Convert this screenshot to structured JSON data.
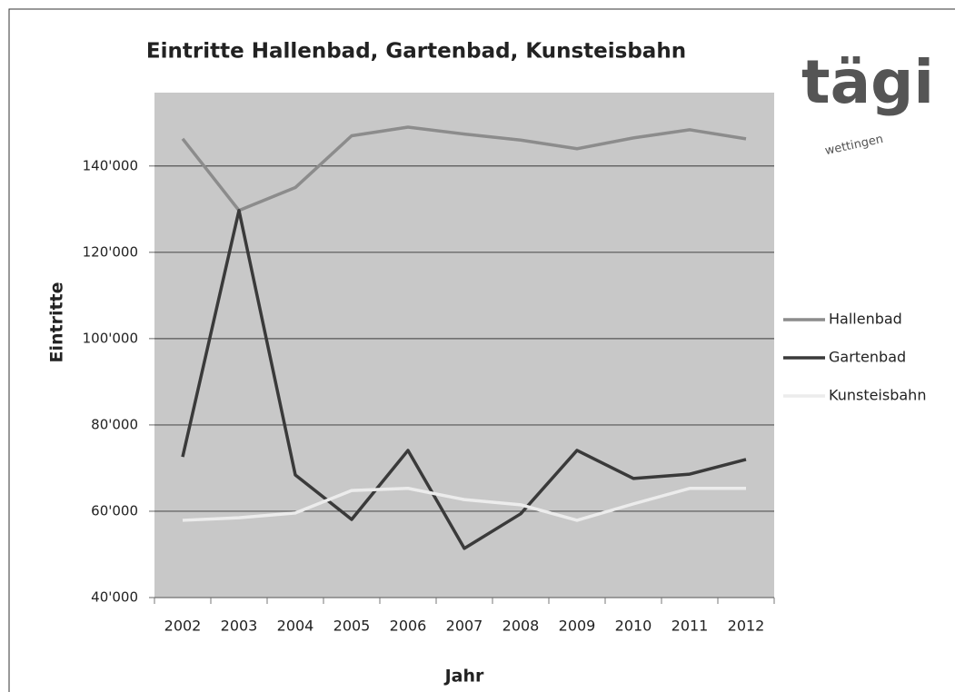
{
  "chart_data": {
    "type": "line",
    "title": "Eintritte Hallenbad, Gartenbad, Kunsteisbahn",
    "x_label": "Jahr",
    "y_label": "Eintritte",
    "categories": [
      "2002",
      "2003",
      "2004",
      "2005",
      "2006",
      "2007",
      "2008",
      "2009",
      "2010",
      "2011",
      "2012"
    ],
    "series": [
      {
        "name": "Hallenbad",
        "color": "#8c8c8c",
        "values": [
          146300,
          129700,
          135000,
          147000,
          149000,
          147400,
          146000,
          144000,
          146500,
          148400,
          146300
        ]
      },
      {
        "name": "Gartenbad",
        "color": "#3a3a3a",
        "values": [
          72600,
          129700,
          68400,
          58100,
          74100,
          51400,
          59400,
          74100,
          67600,
          68600,
          72000
        ]
      },
      {
        "name": "Kunsteisbahn",
        "color": "#ececec",
        "values": [
          57900,
          58500,
          59600,
          64800,
          65300,
          62700,
          61500,
          57900,
          61700,
          65300,
          65300
        ]
      }
    ],
    "ylim": [
      40000,
      157000
    ],
    "yticks": [
      {
        "value": 40000,
        "label": "40'000"
      },
      {
        "value": 60000,
        "label": "60'000"
      },
      {
        "value": 80000,
        "label": "80'000"
      },
      {
        "value": 100000,
        "label": "100'000"
      },
      {
        "value": 120000,
        "label": "120'000"
      },
      {
        "value": 140000,
        "label": "140'000"
      }
    ],
    "grid": true,
    "legend": "right"
  },
  "logo": {
    "name": "tägi",
    "place": "wettingen"
  }
}
